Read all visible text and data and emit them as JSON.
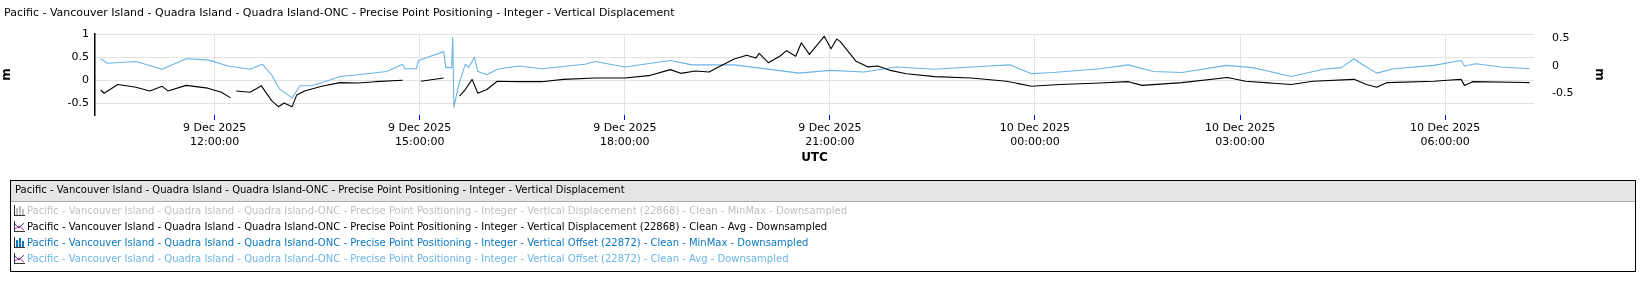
{
  "chart_data": {
    "type": "line",
    "title": "Pacific - Vancouver Island - Quadra Island - Quadra Island-ONC - Precise Point Positioning - Integer - Vertical Displacement",
    "xlabel": "UTC",
    "ylabel": "m",
    "y2label": "m",
    "legend_title": "Pacific - Vancouver Island - Quadra Island - Quadra Island-ONC - Precise Point Positioning - Integer - Vertical Displacement",
    "legend": "bottom",
    "grid": true,
    "marker": "none",
    "line_style": "solid",
    "xlim": [
      "2025-12-09T10:15",
      "2025-12-10T07:18"
    ],
    "xticks": [
      {
        "value": "2025-12-09T12:00",
        "label": "9 Dec 2025\n12:00:00"
      },
      {
        "value": "2025-12-09T15:00",
        "label": "9 Dec 2025\n15:00:00"
      },
      {
        "value": "2025-12-09T18:00",
        "label": "9 Dec 2025\n18:00:00"
      },
      {
        "value": "2025-12-09T21:00",
        "label": "9 Dec 2025\n21:00:00"
      },
      {
        "value": "2025-12-10T00:00",
        "label": "10 Dec 2025\n00:00:00"
      },
      {
        "value": "2025-12-10T03:00",
        "label": "10 Dec 2025\n03:00:00"
      },
      {
        "value": "2025-12-10T06:00",
        "label": "10 Dec 2025\n06:00:00"
      }
    ],
    "ylim": [
      -0.75,
      1
    ],
    "yticks": [
      -0.5,
      0,
      0.5,
      1
    ],
    "y2lim": [
      -0.89,
      0.58
    ],
    "y2ticks": [
      -0.5,
      0,
      0.5
    ],
    "series": [
      {
        "name": "Pacific - Vancouver Island - Quadra Island - Quadra Island-ONC - Precise Point Positioning - Integer - Vertical Displacement (22868) - Clean - MinMax - Downsampled",
        "color": "#c0c0c0"
      },
      {
        "name": "Pacific - Vancouver Island - Quadra Island - Quadra Island-ONC - Precise Point Positioning - Integer - Vertical Displacement (22868) - Clean - Avg - Downsampled",
        "color": "#000000",
        "x": [
          "2025-12-09T10:20",
          "2025-12-09T10:23",
          "2025-12-09T10:35",
          "2025-12-09T10:51",
          "2025-12-09T11:03",
          "2025-12-09T11:14",
          "2025-12-09T11:19",
          "2025-12-09T11:35",
          "2025-12-09T11:54",
          "2025-12-09T12:06",
          "2025-12-09T12:14",
          "2025-12-09T12:16",
          "2025-12-09T12:19",
          "2025-12-09T12:31",
          "2025-12-09T12:41",
          "2025-12-09T12:50",
          "2025-12-09T12:56",
          "2025-12-09T13:01",
          "2025-12-09T13:08",
          "2025-12-09T13:12",
          "2025-12-09T13:19",
          "2025-12-09T13:34",
          "2025-12-09T13:50",
          "2025-12-09T14:06",
          "2025-12-09T14:21",
          "2025-12-09T14:45",
          "2025-12-09T14:52",
          "2025-12-09T15:01",
          "2025-12-09T15:21",
          "2025-12-09T15:28",
          "2025-12-09T15:35",
          "2025-12-09T15:40",
          "2025-12-09T15:46",
          "2025-12-09T15:51",
          "2025-12-09T15:59",
          "2025-12-09T16:08",
          "2025-12-09T16:27",
          "2025-12-09T16:47",
          "2025-12-09T17:06",
          "2025-12-09T17:34",
          "2025-12-09T18:00",
          "2025-12-09T18:21",
          "2025-12-09T18:40",
          "2025-12-09T18:49",
          "2025-12-09T19:02",
          "2025-12-09T19:14",
          "2025-12-09T19:24",
          "2025-12-09T19:36",
          "2025-12-09T19:47",
          "2025-12-09T19:55",
          "2025-12-09T19:58",
          "2025-12-09T20:06",
          "2025-12-09T20:16",
          "2025-12-09T20:22",
          "2025-12-09T20:30",
          "2025-12-09T20:35",
          "2025-12-09T20:42",
          "2025-12-09T20:55",
          "2025-12-09T21:01",
          "2025-12-09T21:06",
          "2025-12-09T21:09",
          "2025-12-09T21:23",
          "2025-12-09T21:33",
          "2025-12-09T21:42",
          "2025-12-09T21:52",
          "2025-12-09T22:07",
          "2025-12-09T22:32",
          "2025-12-09T23:04",
          "2025-12-09T23:35",
          "2025-12-09T23:57",
          "2025-12-10T00:22",
          "2025-12-10T00:57",
          "2025-12-10T01:22",
          "2025-12-10T01:34",
          "2025-12-10T02:09",
          "2025-12-10T02:49",
          "2025-12-10T03:05",
          "2025-12-10T03:45",
          "2025-12-10T04:04",
          "2025-12-10T04:40",
          "2025-12-10T04:51",
          "2025-12-10T05:00",
          "2025-12-10T05:09",
          "2025-12-10T05:50",
          "2025-12-10T06:02",
          "2025-12-10T06:14",
          "2025-12-10T06:17",
          "2025-12-10T06:24",
          "2025-12-10T07:14"
        ],
        "values": [
          -0.21,
          -0.28,
          -0.09,
          -0.15,
          -0.23,
          -0.13,
          -0.23,
          -0.11,
          -0.17,
          -0.26,
          -0.38,
          null,
          -0.23,
          -0.26,
          -0.12,
          -0.44,
          -0.57,
          -0.49,
          -0.57,
          -0.32,
          -0.23,
          -0.13,
          -0.05,
          -0.06,
          -0.03,
          0,
          null,
          -0.02,
          0.05,
          null,
          -0.34,
          -0.2,
          0.02,
          -0.28,
          -0.2,
          -0.02,
          -0.03,
          -0.03,
          0.02,
          0.05,
          0.05,
          0.1,
          0.23,
          0.15,
          0.2,
          0.18,
          0.31,
          0.46,
          0.54,
          0.48,
          0.58,
          0.38,
          0.52,
          0.64,
          0.52,
          0.81,
          0.56,
          0.95,
          0.68,
          0.89,
          0.84,
          0.41,
          0.29,
          0.31,
          0.22,
          0.14,
          0.08,
          0.05,
          -0.02,
          -0.13,
          -0.09,
          -0.06,
          -0.03,
          -0.11,
          -0.05,
          0.06,
          -0.02,
          -0.09,
          -0.02,
          0.02,
          -0.09,
          -0.15,
          -0.05,
          -0.02,
          0,
          0.02,
          -0.11,
          -0.03,
          -0.05
        ]
      },
      {
        "name": "Pacific - Vancouver Island - Quadra Island - Quadra Island-ONC - Precise Point Positioning - Integer - Vertical Offset (22872) - Clean - MinMax - Downsampled",
        "color": "#0a78c0"
      },
      {
        "name": "Pacific - Vancouver Island - Quadra Island - Quadra Island-ONC - Precise Point Positioning - Integer - Vertical Offset (22872) - Clean - Avg - Downsampled",
        "color": "#6cb4e4",
        "axis": "y2",
        "x": [
          "2025-12-09T10:20",
          "2025-12-09T10:26",
          "2025-12-09T10:51",
          "2025-12-09T11:14",
          "2025-12-09T11:35",
          "2025-12-09T11:54",
          "2025-12-09T12:12",
          "2025-12-09T12:31",
          "2025-12-09T12:42",
          "2025-12-09T12:50",
          "2025-12-09T12:57",
          "2025-12-09T13:08",
          "2025-12-09T13:15",
          "2025-12-09T13:25",
          "2025-12-09T13:36",
          "2025-12-09T13:50",
          "2025-12-09T14:06",
          "2025-12-09T14:31",
          "2025-12-09T14:45",
          "2025-12-09T14:47",
          "2025-12-09T14:57",
          "2025-12-09T14:59",
          "2025-12-09T15:21",
          "2025-12-09T15:23",
          "2025-12-09T15:28",
          "2025-12-09T15:29",
          "2025-12-09T15:30",
          "2025-12-09T15:34",
          "2025-12-09T15:40",
          "2025-12-09T15:43",
          "2025-12-09T15:48",
          "2025-12-09T15:51",
          "2025-12-09T15:59",
          "2025-12-09T16:08",
          "2025-12-09T16:27",
          "2025-12-09T16:47",
          "2025-12-09T17:25",
          "2025-12-09T17:34",
          "2025-12-09T18:00",
          "2025-12-09T18:40",
          "2025-12-09T18:59",
          "2025-12-09T19:36",
          "2025-12-09T19:55",
          "2025-12-09T20:33",
          "2025-12-09T21:00",
          "2025-12-09T21:30",
          "2025-12-09T21:58",
          "2025-12-09T22:32",
          "2025-12-09T23:04",
          "2025-12-09T23:38",
          "2025-12-09T23:57",
          "2025-12-10T00:16",
          "2025-12-10T00:57",
          "2025-12-10T01:22",
          "2025-12-10T01:44",
          "2025-12-10T02:09",
          "2025-12-10T02:48",
          "2025-12-10T03:11",
          "2025-12-10T03:45",
          "2025-12-10T04:13",
          "2025-12-10T04:29",
          "2025-12-10T04:40",
          "2025-12-10T04:47",
          "2025-12-10T05:00",
          "2025-12-10T05:15",
          "2025-12-10T05:50",
          "2025-12-10T06:14",
          "2025-12-10T06:17",
          "2025-12-10T06:27",
          "2025-12-10T06:49",
          "2025-12-10T07:14"
        ],
        "values": [
          0.13,
          0.05,
          0.08,
          -0.06,
          0.13,
          0.11,
          0,
          -0.06,
          0.03,
          -0.16,
          -0.42,
          -0.58,
          -0.36,
          -0.36,
          -0.29,
          -0.19,
          -0.16,
          -0.1,
          0.03,
          -0.05,
          -0.05,
          0.1,
          0.26,
          -0.03,
          -0.03,
          0.52,
          -0.75,
          -0.36,
          0.03,
          -0.03,
          0.16,
          -0.1,
          -0.16,
          -0.06,
          0,
          -0.05,
          0.03,
          0.08,
          -0.02,
          0.1,
          0.02,
          0.02,
          -0.03,
          -0.13,
          -0.08,
          -0.11,
          -0.02,
          -0.06,
          -0.02,
          0.02,
          -0.14,
          -0.12,
          -0.05,
          0.02,
          -0.1,
          -0.12,
          0.01,
          -0.03,
          -0.19,
          -0.06,
          -0.03,
          0.13,
          0.03,
          -0.13,
          -0.05,
          0.01,
          0.1,
          0,
          0.04,
          -0.02,
          -0.05
        ]
      }
    ]
  }
}
